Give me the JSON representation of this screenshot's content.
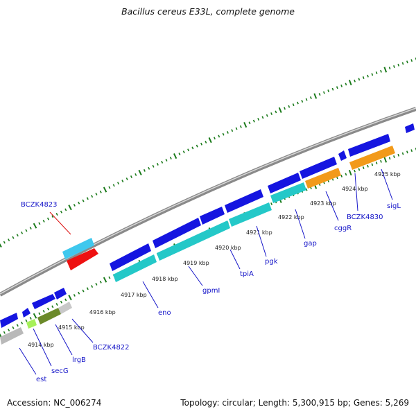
{
  "title": "Bacillus cereus E33L, complete genome",
  "footer": {
    "accession": "Accession: NC_006274",
    "summary": "Topology: circular; Length: 5,300,915 bp; Genes: 5,269"
  },
  "colors": {
    "backbone": "#8a8a8a",
    "tick": "#1a7a1a",
    "cds_forward": "#1515e0",
    "highlight_label": "#dd1111",
    "gene_label": "#1515c8"
  },
  "ticks": [
    {
      "label": "4914 kbp"
    },
    {
      "label": "4915 kbp"
    },
    {
      "label": "4916 kbp"
    },
    {
      "label": "4917 kbp"
    },
    {
      "label": "4918 kbp"
    },
    {
      "label": "4919 kbp"
    },
    {
      "label": "4920 kbp"
    },
    {
      "label": "4921 kbp"
    },
    {
      "label": "4922 kbp"
    },
    {
      "label": "4923 kbp"
    },
    {
      "label": "4924 kbp"
    },
    {
      "label": "4925 kbp"
    }
  ],
  "genes": [
    {
      "name": "est",
      "color": "#1515c8"
    },
    {
      "name": "secG",
      "color": "#1515c8"
    },
    {
      "name": "lrgB",
      "color": "#1515c8"
    },
    {
      "name": "BCZK4822",
      "color": "#1515c8"
    },
    {
      "name": "eno",
      "color": "#1515c8"
    },
    {
      "name": "gpmI",
      "color": "#1515c8"
    },
    {
      "name": "tpiA",
      "color": "#1515c8"
    },
    {
      "name": "pgk",
      "color": "#1515c8"
    },
    {
      "name": "gap",
      "color": "#1515c8"
    },
    {
      "name": "cggR",
      "color": "#1515c8"
    },
    {
      "name": "BCZK4830",
      "color": "#1515c8"
    },
    {
      "name": "sigL",
      "color": "#1515c8"
    },
    {
      "name": "BCZK4823",
      "color": "#dd1111"
    }
  ]
}
